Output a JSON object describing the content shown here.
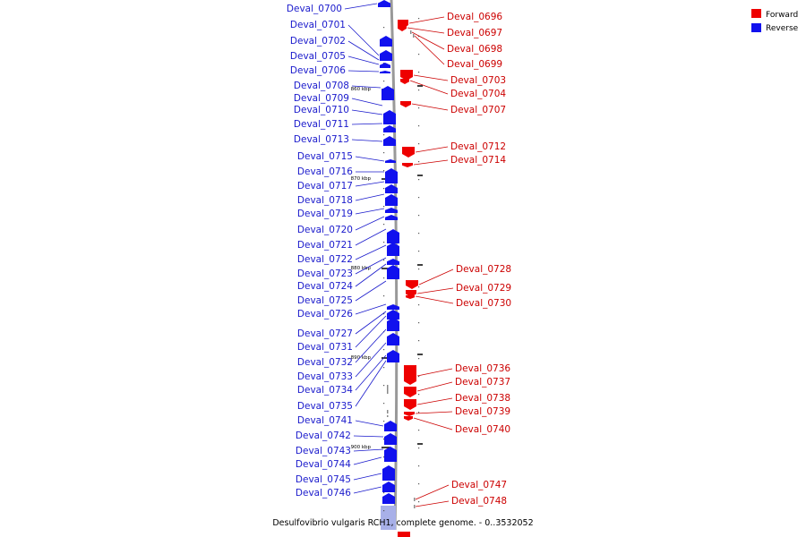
{
  "caption": "Desulfovibrio vulgaris RCH1, complete genome. - 0..3532052",
  "legend": [
    {
      "label": "Forward",
      "color": "#ee0000"
    },
    {
      "label": "Reverse",
      "color": "#1111ee"
    }
  ],
  "colors": {
    "forward": "#ee0000",
    "reverse": "#1111ee",
    "forward_text": "#cc0000",
    "reverse_text": "#1a1acc",
    "backbone": "#999999"
  },
  "ticks": [
    "860 kbp",
    "870 kbp",
    "880 kbp",
    "890 kbp",
    "900 kbp"
  ],
  "forward_genes": [
    "Deval_0696",
    "Deval_0697",
    "Deval_0698",
    "Deval_0699",
    "Deval_0703",
    "Deval_0704",
    "Deval_0707",
    "Deval_0712",
    "Deval_0714",
    "Deval_0728",
    "Deval_0729",
    "Deval_0730",
    "Deval_0736",
    "Deval_0737",
    "Deval_0738",
    "Deval_0739",
    "Deval_0740",
    "Deval_0747",
    "Deval_0748"
  ],
  "reverse_genes": [
    "Deval_0700",
    "Deval_0701",
    "Deval_0702",
    "Deval_0705",
    "Deval_0706",
    "Deval_0708",
    "Deval_0709",
    "Deval_0710",
    "Deval_0711",
    "Deval_0713",
    "Deval_0715",
    "Deval_0716",
    "Deval_0717",
    "Deval_0718",
    "Deval_0719",
    "Deval_0720",
    "Deval_0721",
    "Deval_0722",
    "Deval_0723",
    "Deval_0724",
    "Deval_0725",
    "Deval_0726",
    "Deval_0727",
    "Deval_0731",
    "Deval_0732",
    "Deval_0733",
    "Deval_0734",
    "Deval_0735",
    "Deval_0741",
    "Deval_0742",
    "Deval_0743",
    "Deval_0744",
    "Deval_0745",
    "Deval_0746"
  ]
}
